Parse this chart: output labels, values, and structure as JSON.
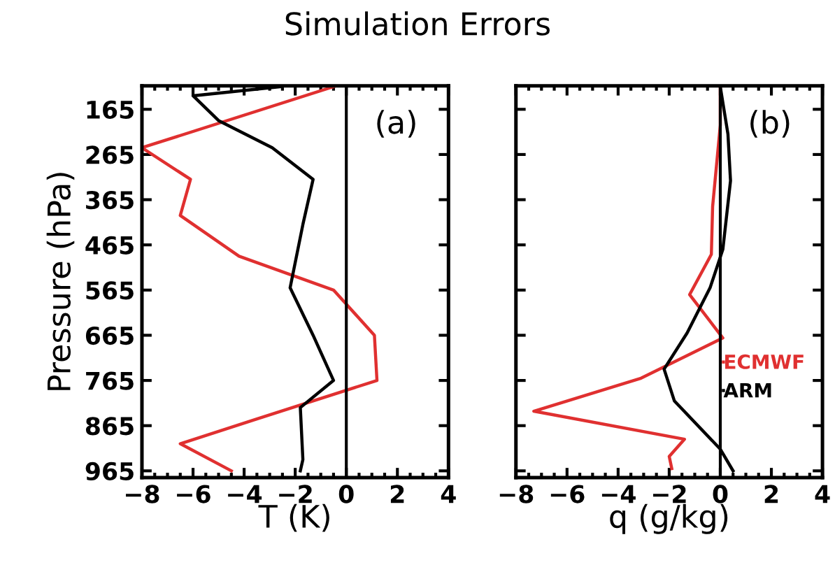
{
  "chart_data": [
    {
      "type": "line",
      "title": "Simulation Errors",
      "xlabel": "T (K)",
      "ylabel": "Pressure (hPa)",
      "annotations": [
        "(a)"
      ],
      "xlim": [
        -8,
        4
      ],
      "xticks": [
        {
          "value": -8,
          "label": "−8"
        },
        {
          "value": -6,
          "label": "−6"
        },
        {
          "value": -4,
          "label": "−4"
        },
        {
          "value": -2,
          "label": "−2"
        },
        0,
        2,
        4
      ],
      "ylim": [
        980,
        113
      ],
      "yticks": [
        165,
        265,
        365,
        465,
        565,
        665,
        765,
        865,
        965
      ],
      "ref_lines": [
        {
          "axis": "x",
          "value": 0,
          "color": "#000000"
        }
      ],
      "grid": false,
      "line_style": "solid",
      "marker": "none",
      "series": [
        {
          "color": "#e03030",
          "x": [
            -0.5,
            -8,
            -6.1,
            -6.5,
            -4.2,
            -0.5,
            1.1,
            1.2,
            -3.5,
            -6.5,
            -4.5
          ],
          "values": [
            115,
            250,
            320,
            400,
            490,
            565,
            665,
            765,
            850,
            905,
            965
          ]
        },
        {
          "color": "#000000",
          "x": [
            -2.6,
            -6.0,
            -5.0,
            -2.9,
            -1.3,
            -1.7,
            -2.2,
            -1.3,
            -0.5,
            -1.8,
            -1.7,
            -1.8
          ],
          "values": [
            115,
            135,
            190,
            250,
            320,
            420,
            560,
            665,
            765,
            825,
            940,
            965
          ]
        }
      ]
    },
    {
      "type": "line",
      "xlabel": "q (g/kg)",
      "annotations": [
        "(b)"
      ],
      "tick_labels": "x",
      "legend": "bottom right",
      "xlim": [
        -8,
        4
      ],
      "xticks": [
        {
          "value": -8,
          "label": "−8"
        },
        {
          "value": -6,
          "label": "−6"
        },
        {
          "value": -4,
          "label": "−4"
        },
        {
          "value": -2,
          "label": "−2"
        },
        0,
        2,
        4
      ],
      "ylim": [
        980,
        113
      ],
      "yticks": [
        165,
        265,
        365,
        465,
        565,
        665,
        765,
        865,
        965
      ],
      "ref_lines": [
        {
          "axis": "x",
          "value": 0,
          "color": "#000000"
        }
      ],
      "grid": false,
      "line_style": "solid",
      "marker": "none",
      "series": [
        {
          "name": "ECMWF",
          "color": "#e03030",
          "x": [
            0,
            0,
            -0.3,
            -0.35,
            -1.2,
            0.1,
            -3.1,
            -7.3,
            -1.4,
            -2,
            -1.9
          ],
          "values": [
            115,
            200,
            380,
            486,
            575,
            671,
            760,
            833,
            895,
            933,
            960
          ]
        },
        {
          "name": "ARM",
          "color": "#000000",
          "x": [
            0,
            0.3,
            0.4,
            0.1,
            -0.4,
            -1.3,
            -2.2,
            -1.8,
            0,
            0.5
          ],
          "values": [
            115,
            220,
            323,
            475,
            560,
            660,
            740,
            810,
            917,
            965
          ]
        }
      ]
    }
  ]
}
